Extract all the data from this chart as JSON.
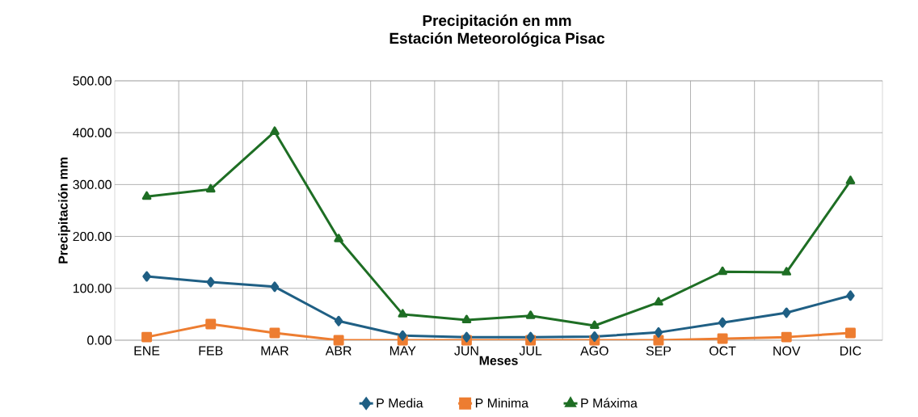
{
  "chart_data": {
    "type": "line",
    "title": "Precipitación en mm",
    "subtitle": "Estación Meteorológica Pisac",
    "xlabel": "Meses",
    "ylabel": "Precipitación mm",
    "categories": [
      "ENE",
      "FEB",
      "MAR",
      "ABR",
      "MAY",
      "JUN",
      "JUL",
      "AGO",
      "SEP",
      "OCT",
      "NOV",
      "DIC"
    ],
    "series": [
      {
        "name": "P Media",
        "color": "#1f5f84",
        "marker": "diamond",
        "values": [
          123,
          112,
          103,
          37,
          9,
          6,
          6,
          7,
          15,
          34,
          53,
          86
        ]
      },
      {
        "name": "P Minima",
        "color": "#ed7d31",
        "marker": "square",
        "values": [
          6,
          31,
          14,
          0,
          0,
          0,
          0,
          0,
          0,
          3,
          6,
          14
        ]
      },
      {
        "name": "P Máxima",
        "color": "#1e6e24",
        "marker": "triangle",
        "values": [
          277,
          291,
          402,
          195,
          50,
          39,
          47,
          28,
          73,
          132,
          131,
          307
        ]
      }
    ],
    "ylim": [
      0,
      500
    ],
    "yticks": [
      {
        "value": 0,
        "label": "0.00"
      },
      {
        "value": 100,
        "label": "100.00"
      },
      {
        "value": 200,
        "label": "200.00"
      },
      {
        "value": 300,
        "label": "300.00"
      },
      {
        "value": 400,
        "label": "400.00"
      },
      {
        "value": 500,
        "label": "500.00"
      }
    ],
    "grid": true,
    "legend": "bottom",
    "line_style": "solid"
  }
}
